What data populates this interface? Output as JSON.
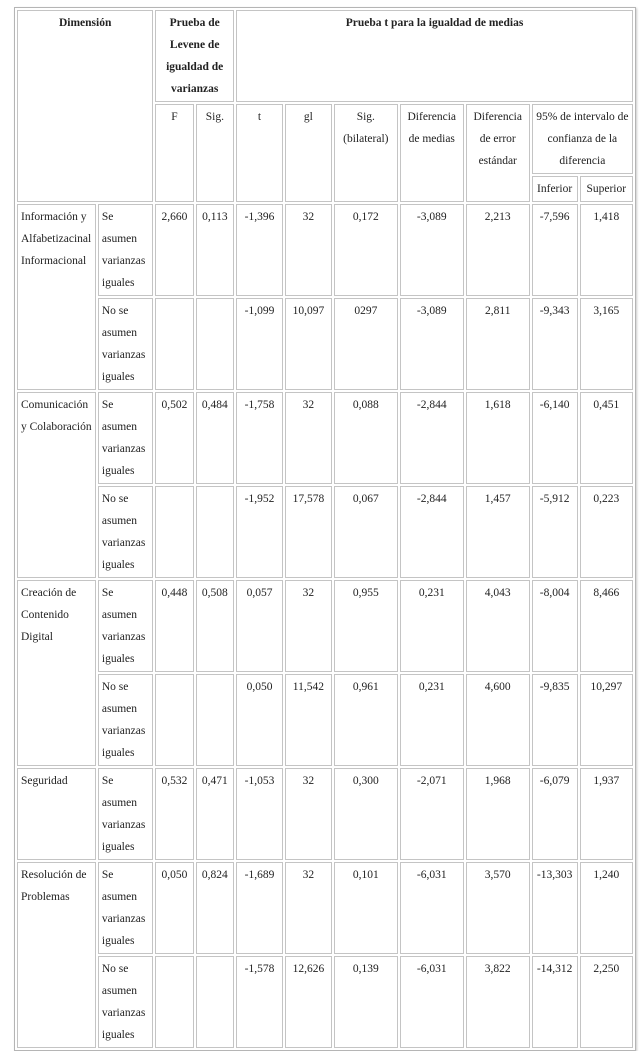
{
  "header": {
    "dimension": "Dimensión",
    "levene": "Prueba de Levene de igualdad de varianzas",
    "ttest": "Prueba t para la igualdad de medias",
    "cols": [
      "F",
      "Sig.",
      "t",
      "gl",
      "Sig. (bilateral)",
      "Diferencia de medias",
      "Diferencia de error estándar"
    ],
    "ci": "95% de intervalo de confianza de la diferencia",
    "inferior": "Inferior",
    "superior": "Superior"
  },
  "labels": {
    "equal": "Se asumen varianzas iguales",
    "unequal": "No se asumen varianzas iguales"
  },
  "groups": [
    {
      "name": "Información y Alfabetizacinal Informacional",
      "rows": [
        [
          "2,660",
          "0,113",
          "-1,396",
          "32",
          "0,172",
          "-3,089",
          "2,213",
          "-7,596",
          "1,418"
        ],
        [
          "",
          "",
          "-1,099",
          "10,097",
          "0297",
          "-3,089",
          "2,811",
          "-9,343",
          "3,165"
        ]
      ]
    },
    {
      "name": "Comunicación y Colaboración",
      "rows": [
        [
          "0,502",
          "0,484",
          "-1,758",
          "32",
          "0,088",
          "-2,844",
          "1,618",
          "-6,140",
          "0,451"
        ],
        [
          "",
          "",
          "-1,952",
          "17,578",
          "0,067",
          "-2,844",
          "1,457",
          "-5,912",
          "0,223"
        ]
      ]
    },
    {
      "name": "Creación de Contenido Digital",
      "rows": [
        [
          "0,448",
          "0,508",
          "0,057",
          "32",
          "0,955",
          "0,231",
          "4,043",
          "-8,004",
          "8,466"
        ],
        [
          "",
          "",
          "0,050",
          "11,542",
          "0,961",
          "0,231",
          "4,600",
          "-9,835",
          "10,297"
        ]
      ]
    },
    {
      "name": "Seguridad",
      "rows": [
        [
          "0,532",
          "0,471",
          "-1,053",
          "32",
          "0,300",
          "-2,071",
          "1,968",
          "-6,079",
          "1,937"
        ]
      ]
    },
    {
      "name": "Resolución de Problemas",
      "rows": [
        [
          "0,050",
          "0,824",
          "-1,689",
          "32",
          "0,101",
          "-6,031",
          "3,570",
          "-13,303",
          "1,240"
        ],
        [
          "",
          "",
          "-1,578",
          "12,626",
          "0,139",
          "-6,031",
          "3,822",
          "-14,312",
          "2,250"
        ]
      ]
    }
  ]
}
